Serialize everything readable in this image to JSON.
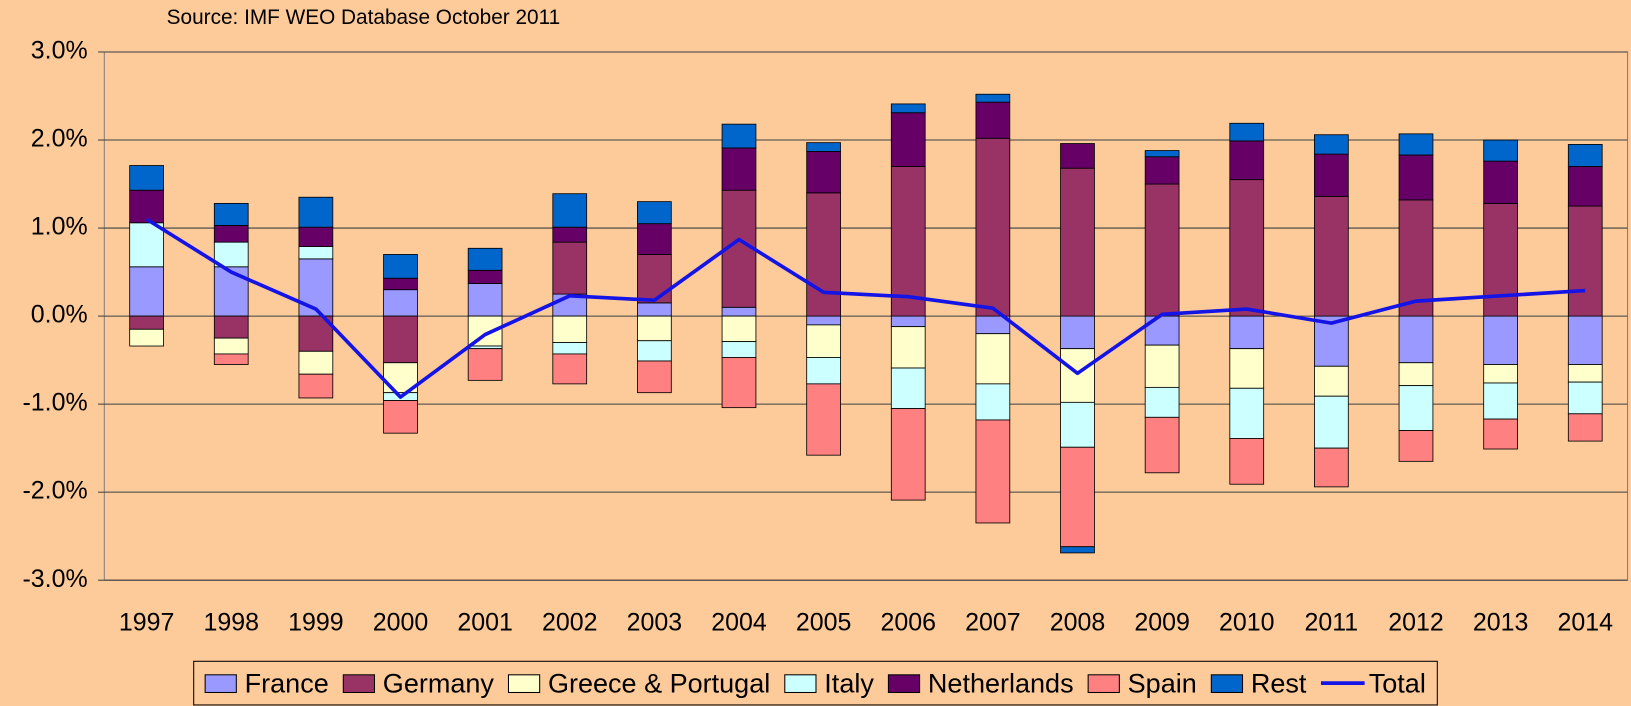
{
  "chart_data": {
    "type": "bar",
    "stacked": true,
    "subtitle": "Source: IMF WEO Database October 2011",
    "categories": [
      "1997",
      "1998",
      "1999",
      "2000",
      "2001",
      "2002",
      "2003",
      "2004",
      "2005",
      "2006",
      "2007",
      "2008",
      "2009",
      "2010",
      "2011",
      "2012",
      "2013",
      "2014"
    ],
    "ylim": [
      -3,
      3
    ],
    "yticks": [
      {
        "value": -3,
        "label": "-3.0%"
      },
      {
        "value": -2,
        "label": "-2.0%"
      },
      {
        "value": -1,
        "label": "-1.0%"
      },
      {
        "value": 0,
        "label": "0.0%"
      },
      {
        "value": 1,
        "label": "1.0%"
      },
      {
        "value": 2,
        "label": "2.0%"
      },
      {
        "value": 3,
        "label": "3.0%"
      }
    ],
    "grid": true,
    "legend": "bottom",
    "series": [
      {
        "name": "France",
        "color": "#9999ff",
        "values": [
          0.56,
          0.56,
          0.65,
          0.3,
          0.37,
          0.25,
          0.15,
          0.1,
          -0.1,
          -0.12,
          -0.2,
          -0.37,
          -0.33,
          -0.37,
          -0.57,
          -0.53,
          -0.55,
          -0.55
        ]
      },
      {
        "name": "Germany",
        "color": "#993366",
        "values": [
          -0.15,
          -0.25,
          -0.4,
          -0.53,
          0,
          0.59,
          0.55,
          1.33,
          1.4,
          1.7,
          2.02,
          1.68,
          1.5,
          1.55,
          1.36,
          1.32,
          1.28,
          1.25
        ]
      },
      {
        "name": "Greece & Portugal",
        "color": "#ffffcc",
        "values": [
          -0.19,
          -0.18,
          -0.26,
          -0.34,
          -0.34,
          -0.3,
          -0.28,
          -0.29,
          -0.37,
          -0.47,
          -0.57,
          -0.61,
          -0.48,
          -0.45,
          -0.34,
          -0.26,
          -0.21,
          -0.2
        ]
      },
      {
        "name": "Italy",
        "color": "#ccffff",
        "values": [
          0.5,
          0.28,
          0.14,
          -0.09,
          -0.03,
          -0.13,
          -0.23,
          -0.18,
          -0.3,
          -0.46,
          -0.41,
          -0.51,
          -0.34,
          -0.57,
          -0.59,
          -0.51,
          -0.41,
          -0.36
        ]
      },
      {
        "name": "Netherlands",
        "color": "#660066",
        "values": [
          0.37,
          0.19,
          0.22,
          0.13,
          0.15,
          0.17,
          0.35,
          0.48,
          0.47,
          0.61,
          0.41,
          0.28,
          0.31,
          0.44,
          0.48,
          0.51,
          0.48,
          0.45
        ]
      },
      {
        "name": "Spain",
        "color": "#ff8080",
        "values": [
          0,
          -0.12,
          -0.27,
          -0.37,
          -0.36,
          -0.34,
          -0.36,
          -0.57,
          -0.81,
          -1.04,
          -1.17,
          -1.13,
          -0.63,
          -0.52,
          -0.44,
          -0.35,
          -0.34,
          -0.31
        ]
      },
      {
        "name": "Rest",
        "color": "#0066cc",
        "values": [
          0.28,
          0.25,
          0.34,
          0.27,
          0.25,
          0.38,
          0.25,
          0.27,
          0.1,
          0.1,
          0.09,
          -0.07,
          0.07,
          0.2,
          0.22,
          0.24,
          0.24,
          0.25
        ]
      },
      {
        "name": "Total",
        "color": "#1414e6",
        "type": "line",
        "values": [
          1.1,
          0.5,
          0.08,
          -0.92,
          -0.21,
          0.23,
          0.18,
          0.87,
          0.27,
          0.22,
          0.09,
          -0.65,
          0.02,
          0.08,
          -0.08,
          0.17,
          0.23,
          0.29
        ]
      }
    ]
  }
}
